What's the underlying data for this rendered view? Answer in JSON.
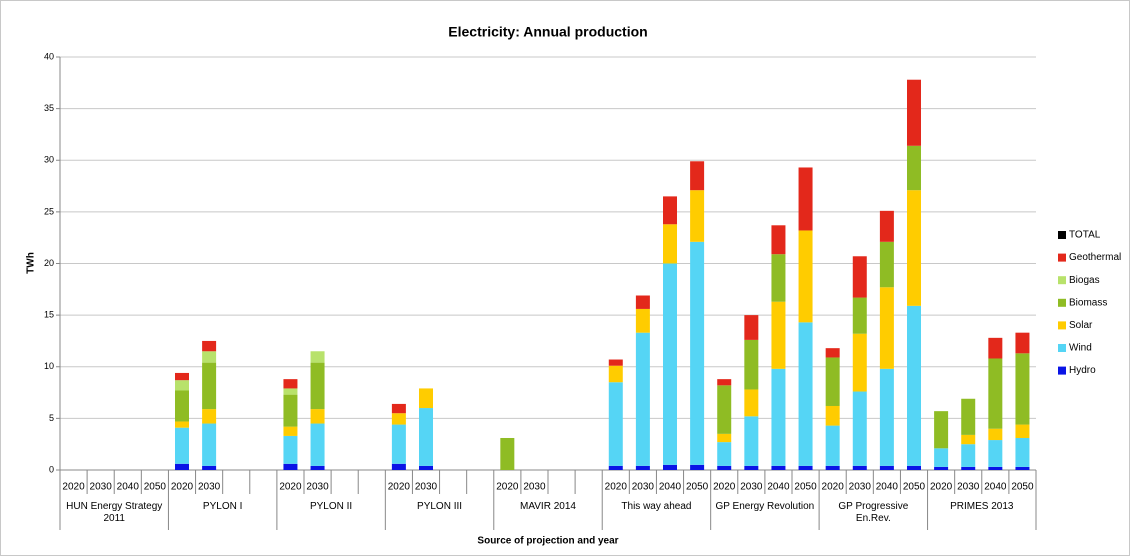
{
  "chart_data": {
    "type": "stacked-bar",
    "title": "Electricity: Annual production",
    "x_label": "Source of projection and year",
    "y_label": "TWh",
    "categories": [
      "2020",
      "2030",
      "2040",
      "2050",
      "2020",
      "2030",
      null,
      null,
      "2020",
      "2030",
      null,
      null,
      "2020",
      "2030",
      null,
      null,
      "2020",
      "2030",
      null,
      null,
      "2020",
      "2030",
      "2040",
      "2050",
      "2020",
      "2030",
      "2040",
      "2050",
      "2020",
      "2030",
      "2040",
      "2050",
      "2020",
      "2030",
      "2040",
      "2050"
    ],
    "groups": [
      "HUN Energy Strategy 2011",
      "PYLON I",
      "PYLON II",
      "PYLON III",
      "MAVIR 2014",
      "This way ahead",
      "GP Energy Revolution",
      "GP Progressive En.Rev.",
      "PRIMES 2013"
    ],
    "series": [
      {
        "name": "TOTAL",
        "color": "#000000",
        "values": [
          null,
          null,
          null,
          null,
          null,
          null,
          null,
          null,
          null,
          null,
          null,
          null,
          null,
          null,
          null,
          null,
          null,
          null,
          null,
          null,
          null,
          null,
          null,
          null,
          null,
          null,
          null,
          null,
          null,
          null,
          null,
          null,
          null,
          null,
          null,
          null
        ]
      },
      {
        "name": "Geothermal",
        "color": "#e3281b",
        "values": [
          null,
          null,
          null,
          null,
          0.7,
          1.0,
          null,
          null,
          0.9,
          null,
          null,
          null,
          0.9,
          null,
          null,
          null,
          null,
          null,
          null,
          null,
          0.6,
          1.3,
          2.7,
          2.8,
          0.6,
          2.4,
          2.8,
          6.1,
          0.9,
          4.0,
          3.0,
          6.4,
          null,
          null,
          2.0,
          2.0
        ]
      },
      {
        "name": "Biogas",
        "color": "#b8e26b",
        "values": [
          null,
          null,
          null,
          null,
          1.0,
          1.1,
          null,
          null,
          0.6,
          1.1,
          null,
          null,
          null,
          null,
          null,
          null,
          null,
          null,
          null,
          null,
          null,
          null,
          null,
          null,
          null,
          null,
          null,
          null,
          null,
          null,
          null,
          null,
          null,
          null,
          null,
          null
        ]
      },
      {
        "name": "Biomass",
        "color": "#8fbc24",
        "values": [
          null,
          null,
          null,
          null,
          3.0,
          4.5,
          null,
          null,
          3.1,
          4.5,
          null,
          null,
          null,
          null,
          null,
          null,
          3.1,
          null,
          null,
          null,
          null,
          null,
          null,
          null,
          4.7,
          4.8,
          4.6,
          null,
          4.7,
          3.5,
          4.4,
          4.3,
          3.6,
          3.5,
          6.8,
          6.9
        ]
      },
      {
        "name": "Solar",
        "color": "#ffcc00",
        "values": [
          null,
          null,
          null,
          null,
          0.6,
          1.4,
          null,
          null,
          0.9,
          1.4,
          null,
          null,
          1.1,
          1.9,
          null,
          null,
          null,
          null,
          null,
          null,
          1.6,
          2.3,
          3.8,
          5.0,
          0.8,
          2.6,
          6.5,
          8.9,
          1.9,
          5.6,
          7.9,
          11.2,
          null,
          0.9,
          1.1,
          1.3
        ]
      },
      {
        "name": "Wind",
        "color": "#55d5f5",
        "values": [
          null,
          null,
          null,
          null,
          3.5,
          4.1,
          null,
          null,
          2.7,
          4.1,
          null,
          null,
          3.8,
          5.6,
          null,
          null,
          null,
          null,
          null,
          null,
          8.1,
          12.9,
          19.5,
          21.6,
          2.3,
          4.8,
          9.4,
          13.9,
          3.9,
          7.2,
          9.4,
          15.5,
          1.8,
          2.2,
          2.6,
          2.8
        ]
      },
      {
        "name": "Hydro",
        "color": "#0a14e6",
        "values": [
          null,
          null,
          null,
          null,
          0.6,
          0.4,
          null,
          null,
          0.6,
          0.4,
          null,
          null,
          0.6,
          0.4,
          null,
          null,
          null,
          null,
          null,
          null,
          0.4,
          0.4,
          0.5,
          0.5,
          0.4,
          0.4,
          0.4,
          0.4,
          0.4,
          0.4,
          0.4,
          0.4,
          0.3,
          0.3,
          0.3,
          0.3
        ]
      }
    ],
    "ylim": [
      0,
      40
    ],
    "yticks": [
      0,
      5,
      10,
      15,
      20,
      25,
      30,
      35,
      40
    ],
    "grid": true
  }
}
